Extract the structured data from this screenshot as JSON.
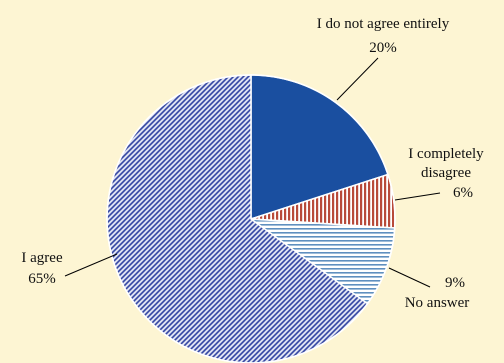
{
  "chart_data": {
    "type": "pie",
    "start_angle_deg": 0,
    "direction": "clockwise",
    "slices": [
      {
        "label_lines": [
          "I do not agree entirely"
        ],
        "value": 20,
        "value_label": "20%",
        "color": "#1a4fa0",
        "pattern": "solid",
        "pattern_color": "#1a4fa0",
        "pattern_bg": "#1a4fa0"
      },
      {
        "label_lines": [
          "I completely",
          "disagree"
        ],
        "value": 6,
        "value_label": "6%",
        "color": "#c9614a",
        "pattern": "vertical",
        "pattern_color": "#b84a3a",
        "pattern_bg": "#ffffff"
      },
      {
        "label_lines": [
          "No answer"
        ],
        "value": 9,
        "value_label": "9%",
        "color": "#8fb3d6",
        "pattern": "horizontal",
        "pattern_color": "#5f8fbf",
        "pattern_bg": "#ffffff"
      },
      {
        "label_lines": [
          "I agree"
        ],
        "value": 65,
        "value_label": "65%",
        "color": "#8a9ad6",
        "pattern": "diagonal",
        "pattern_color": "#3547a3",
        "pattern_bg": "#dfe3f3"
      }
    ]
  }
}
